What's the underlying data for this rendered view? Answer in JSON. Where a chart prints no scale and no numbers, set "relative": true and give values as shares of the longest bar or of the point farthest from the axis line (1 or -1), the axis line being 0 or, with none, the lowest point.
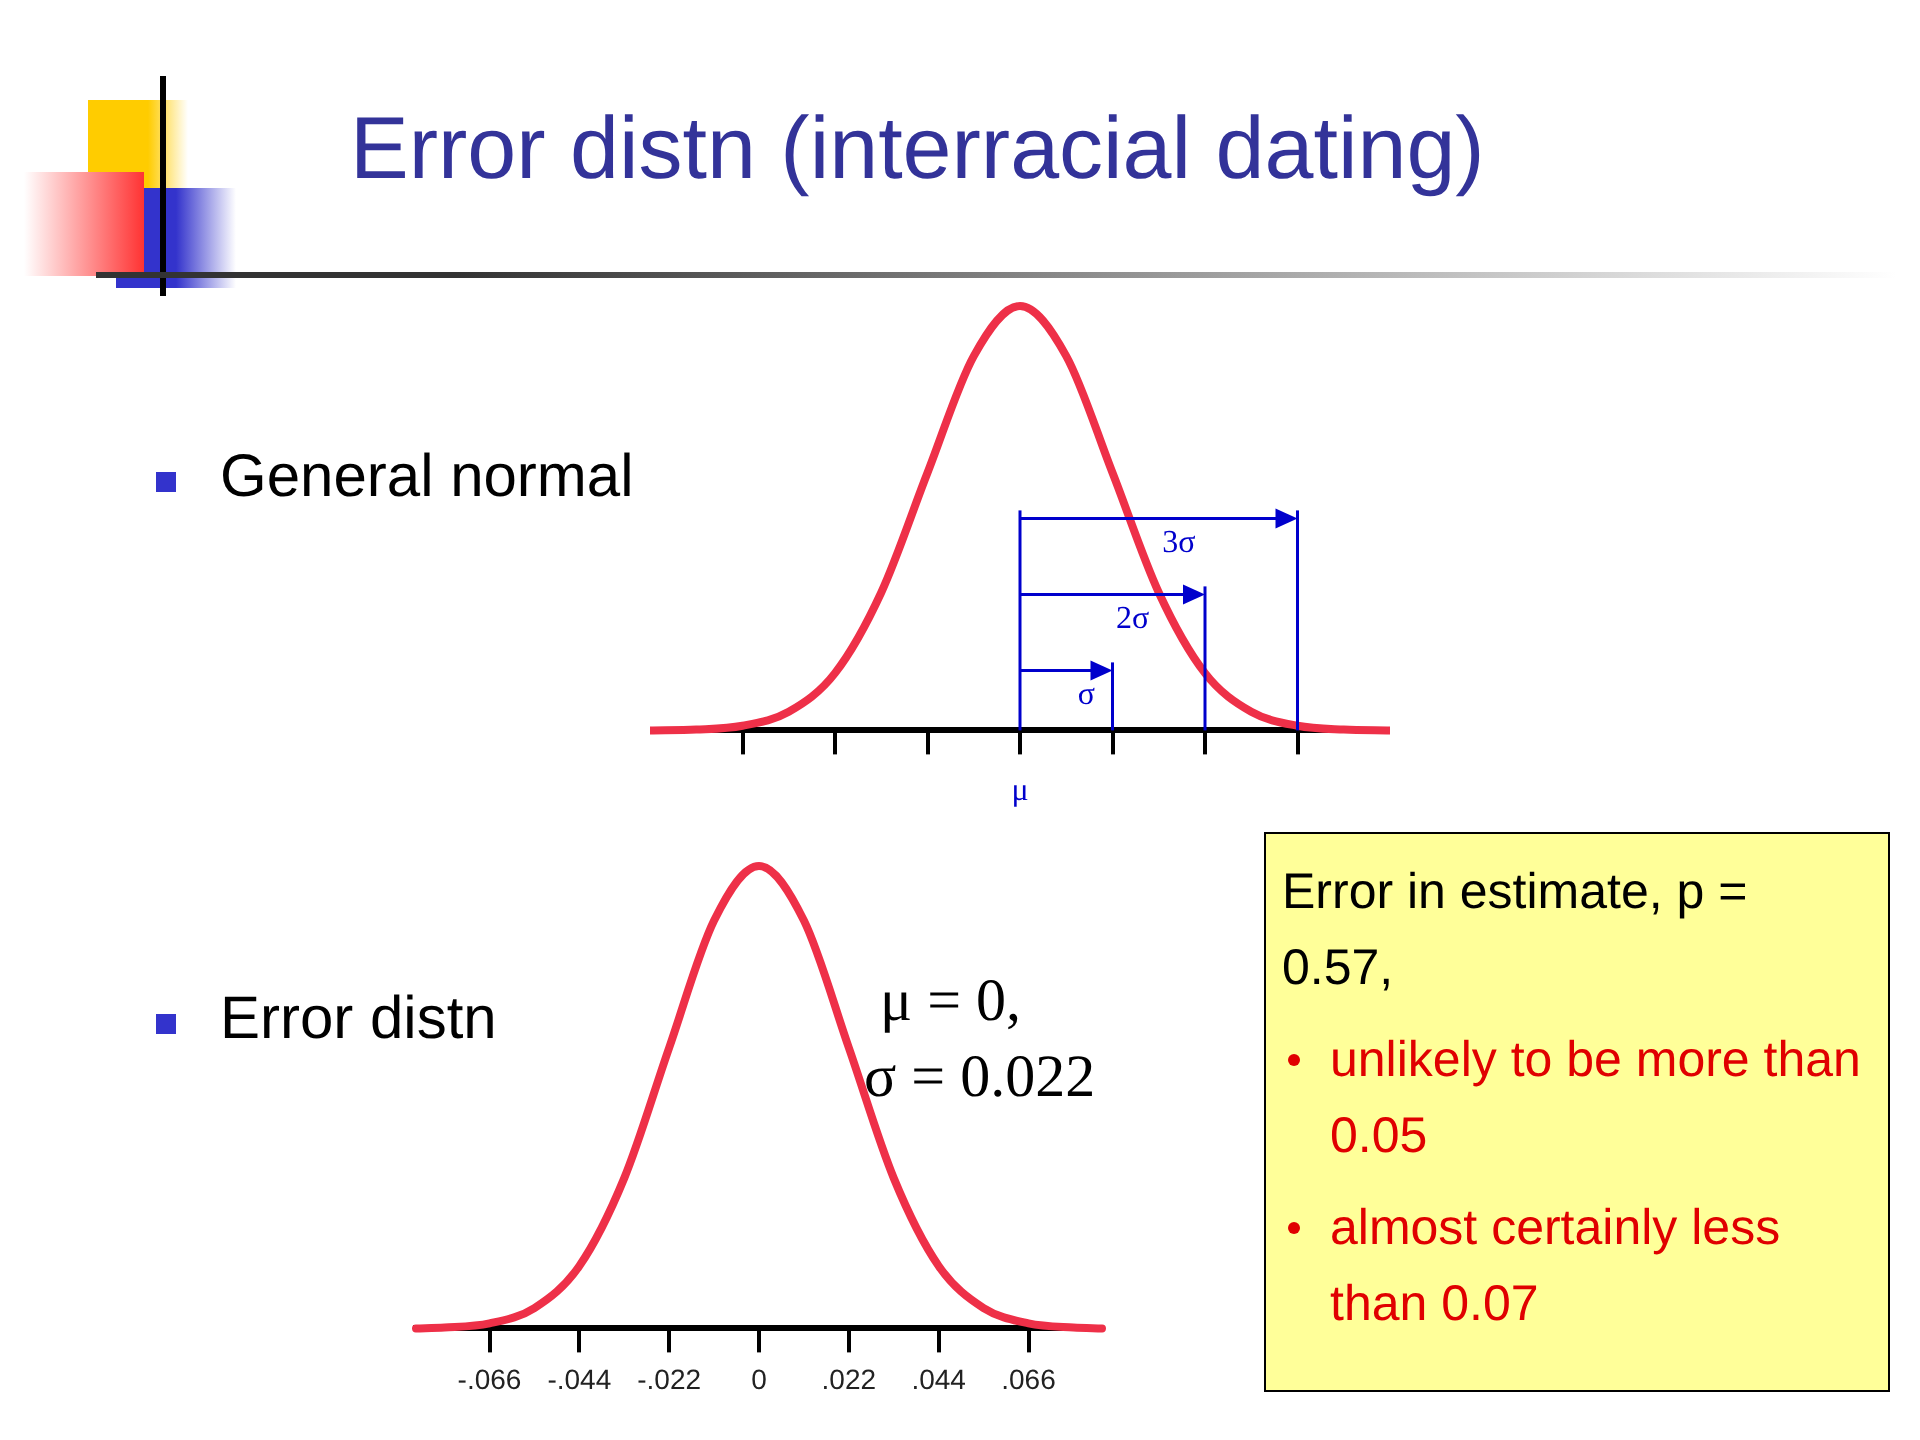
{
  "chart_data": [
    {
      "type": "line",
      "title": "Error distn (interracial dating)",
      "subtitle": "General normal",
      "relative": true,
      "categories": [
        null,
        null,
        null,
        null,
        null,
        null,
        null,
        null,
        null,
        null,
        null,
        null,
        null,
        null,
        null,
        null,
        null
      ],
      "values": [
        0,
        0.002,
        0.011,
        0.044,
        0.135,
        0.325,
        0.607,
        0.882,
        1,
        0.882,
        0.607,
        0.325,
        0.135,
        0.044,
        0.011,
        0.002,
        0
      ],
      "color": "#ee3048",
      "annotations": [
        "μ",
        "σ",
        "2σ",
        "3σ"
      ],
      "grid": false,
      "legend": false,
      "marker": "none"
    },
    {
      "type": "line",
      "subtitle": "Error distn",
      "relative": true,
      "x": [
        -0.084,
        -0.077,
        -0.066,
        -0.055,
        -0.044,
        -0.033,
        -0.022,
        -0.011,
        0,
        0.011,
        0.022,
        0.033,
        0.044,
        0.055,
        0.066,
        0.077,
        0.084
      ],
      "values": [
        0,
        0.002,
        0.011,
        0.044,
        0.135,
        0.325,
        0.607,
        0.882,
        1,
        0.882,
        0.607,
        0.325,
        0.135,
        0.044,
        0.011,
        0.002,
        0
      ],
      "color": "#ee3048",
      "xlim": [
        -0.084,
        0.084
      ],
      "xticks": [
        {
          "value": -0.066,
          "label": "-.066"
        },
        {
          "value": -0.044,
          "label": "-.044"
        },
        {
          "value": -0.022,
          "label": "-.022"
        },
        0,
        {
          "value": 0.022,
          "label": ".022"
        },
        {
          "value": 0.044,
          "label": ".044"
        },
        {
          "value": 0.066,
          "label": ".066"
        }
      ],
      "annotations": [
        "μ = 0,",
        "σ = 0.022",
        "Error in estimate, p = 0.57,",
        "unlikely to be more than 0.05",
        "almost certainly less than 0.07"
      ],
      "grid": false,
      "legend": false,
      "marker": "none"
    }
  ]
}
